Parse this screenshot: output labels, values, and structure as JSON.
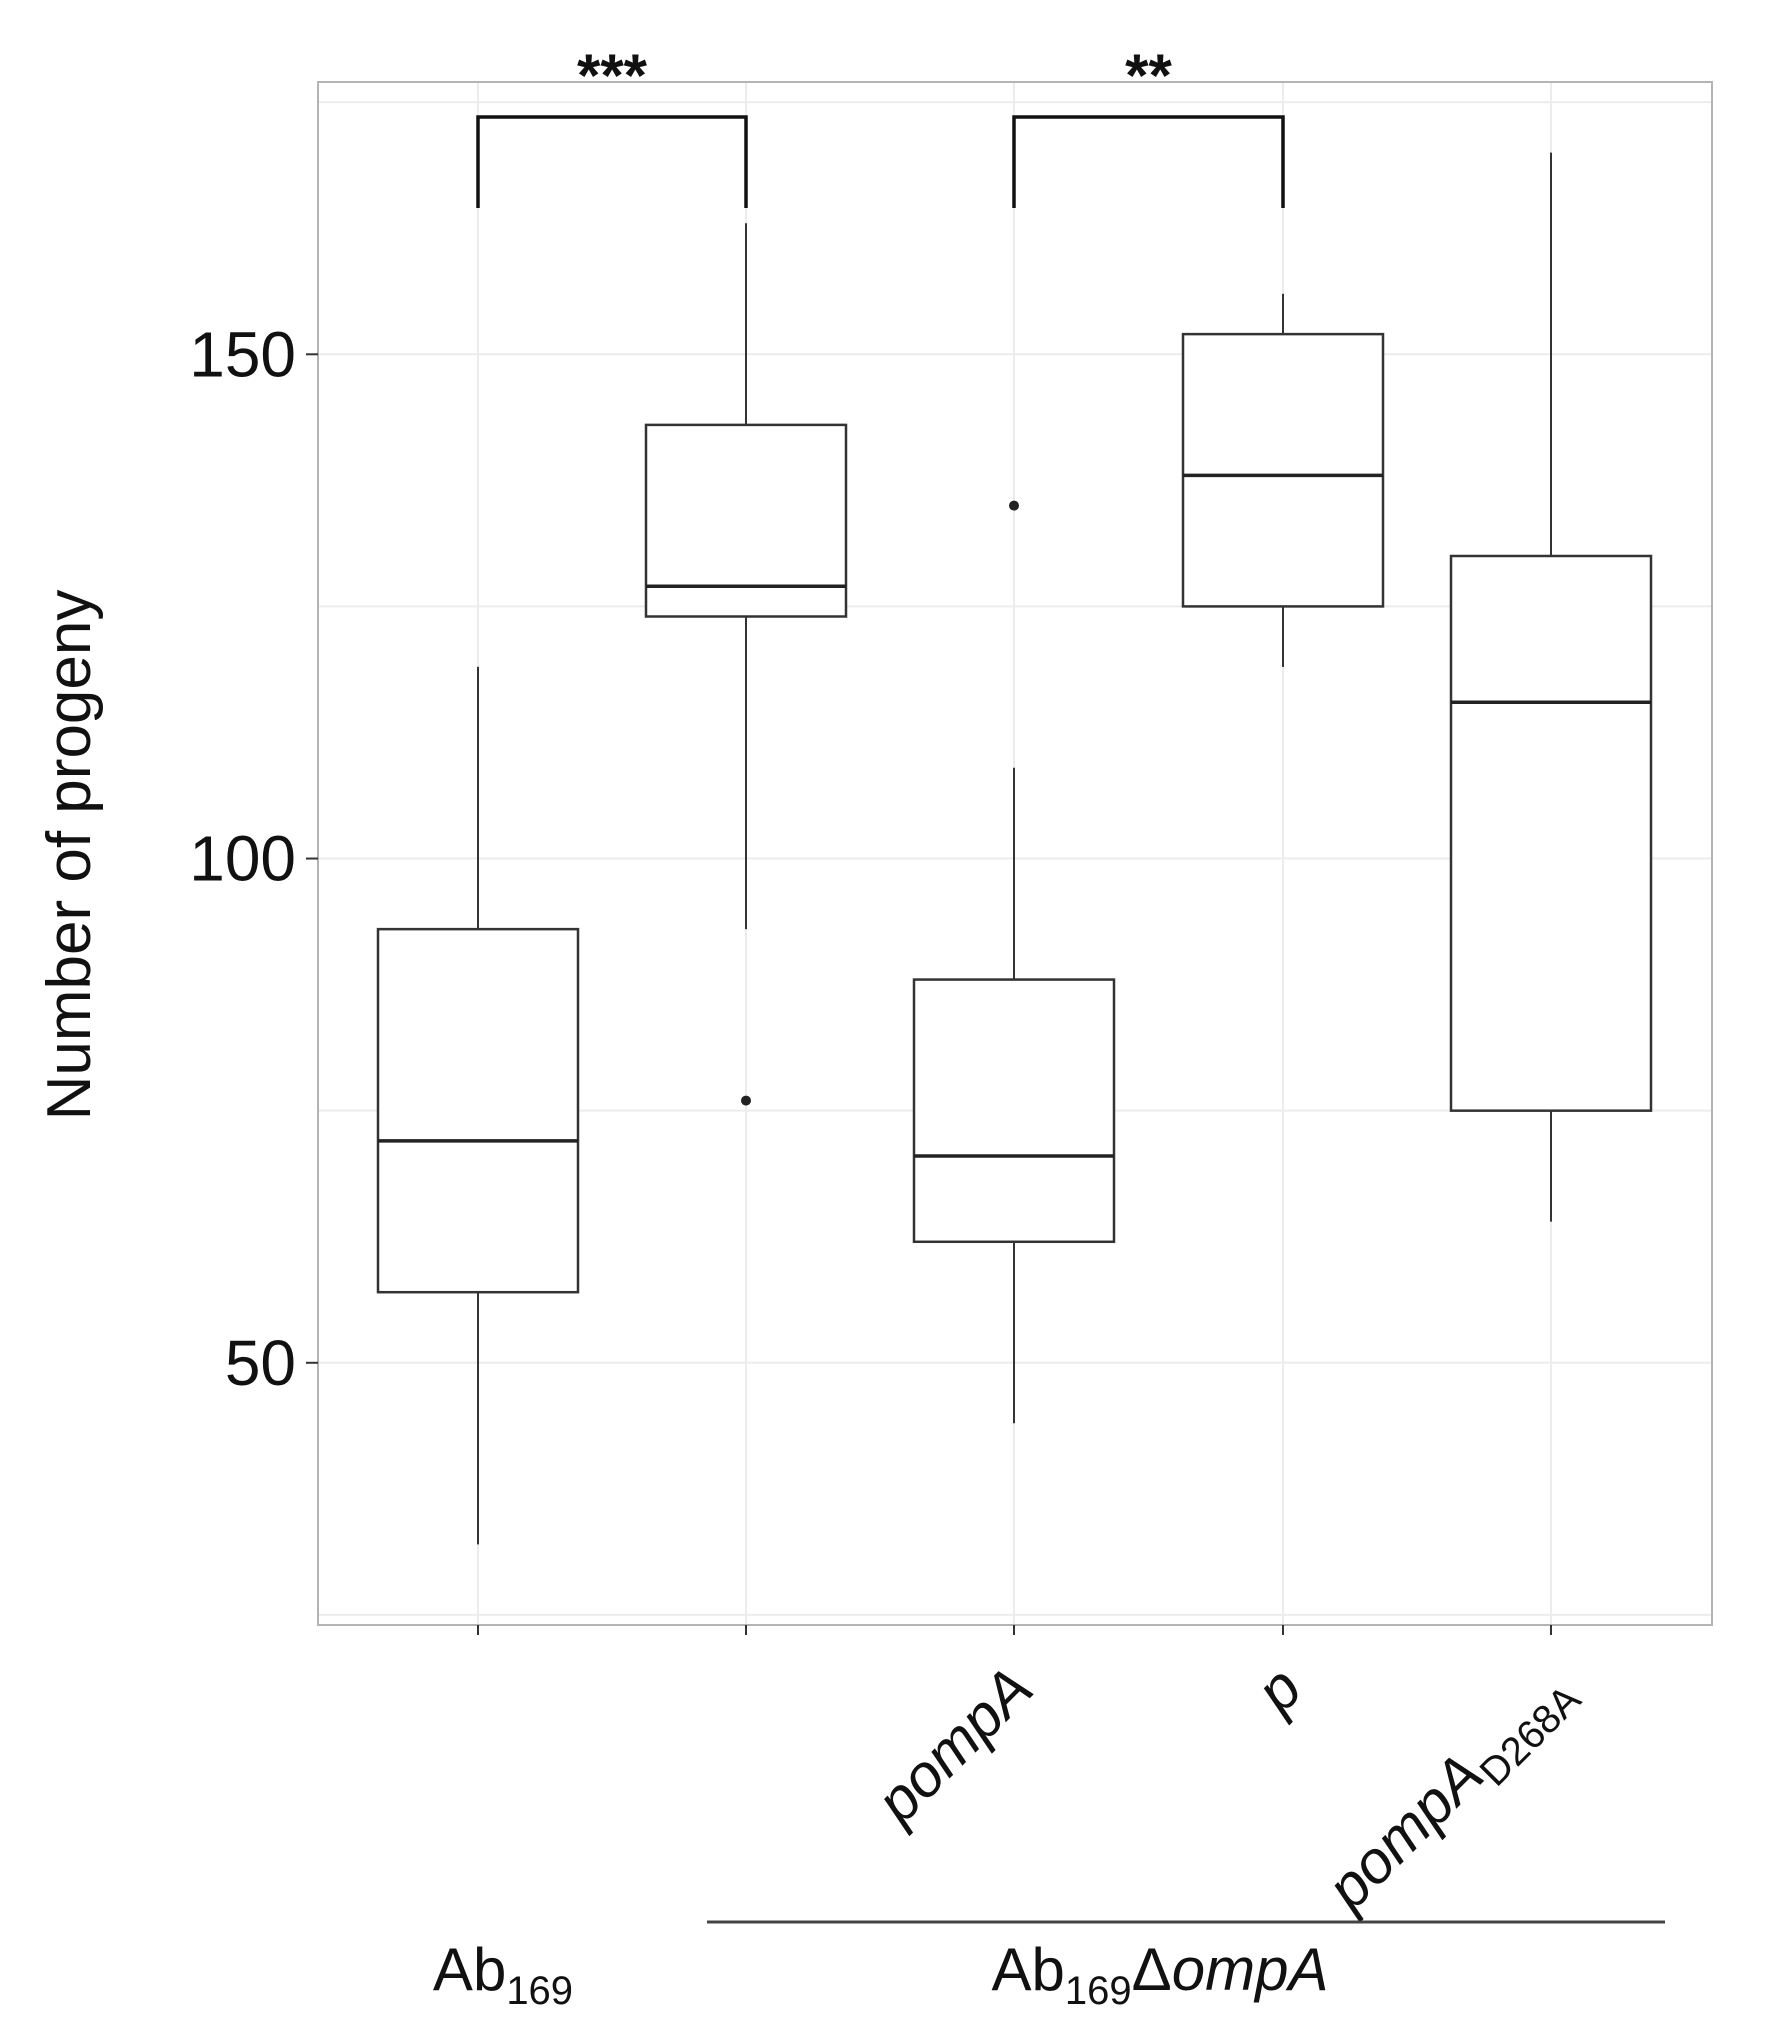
{
  "chart_data": {
    "type": "box",
    "ylabel": "Number of progeny",
    "ylim": [
      24,
      177
    ],
    "yticks": [
      50,
      100,
      150
    ],
    "grid": true,
    "categories": [
      {
        "main": "",
        "sub": ""
      },
      {
        "main": "",
        "sub": ""
      },
      {
        "main": "pompA",
        "sub": ""
      },
      {
        "main": "p",
        "sub": ""
      },
      {
        "main": "pompA",
        "sub": "D268A"
      }
    ],
    "boxes": [
      {
        "whisker_low": 32,
        "q1": 57,
        "median": 72,
        "q3": 93,
        "whisker_high": 119,
        "outliers": []
      },
      {
        "whisker_low": 93,
        "q1": 124,
        "median": 127,
        "q3": 143,
        "whisker_high": 163,
        "outliers": [
          76
        ]
      },
      {
        "whisker_low": 44,
        "q1": 62,
        "median": 70.5,
        "q3": 88,
        "whisker_high": 109,
        "outliers": [
          135
        ]
      },
      {
        "whisker_low": 119,
        "q1": 125,
        "median": 138,
        "q3": 152,
        "whisker_high": 156,
        "outliers": []
      },
      {
        "whisker_low": 64,
        "q1": 75,
        "median": 115.5,
        "q3": 130,
        "whisker_high": 170,
        "outliers": []
      }
    ],
    "significance": [
      {
        "from": 0,
        "to": 1,
        "label": "***"
      },
      {
        "from": 2,
        "to": 3,
        "label": "**"
      }
    ],
    "groups": [
      {
        "main": "Ab",
        "sub": "169",
        "suffix": "",
        "from": 0,
        "to": 0
      },
      {
        "main": "Ab",
        "sub": "169",
        "suffix": "ΔompA",
        "from": 1,
        "to": 4
      }
    ]
  }
}
